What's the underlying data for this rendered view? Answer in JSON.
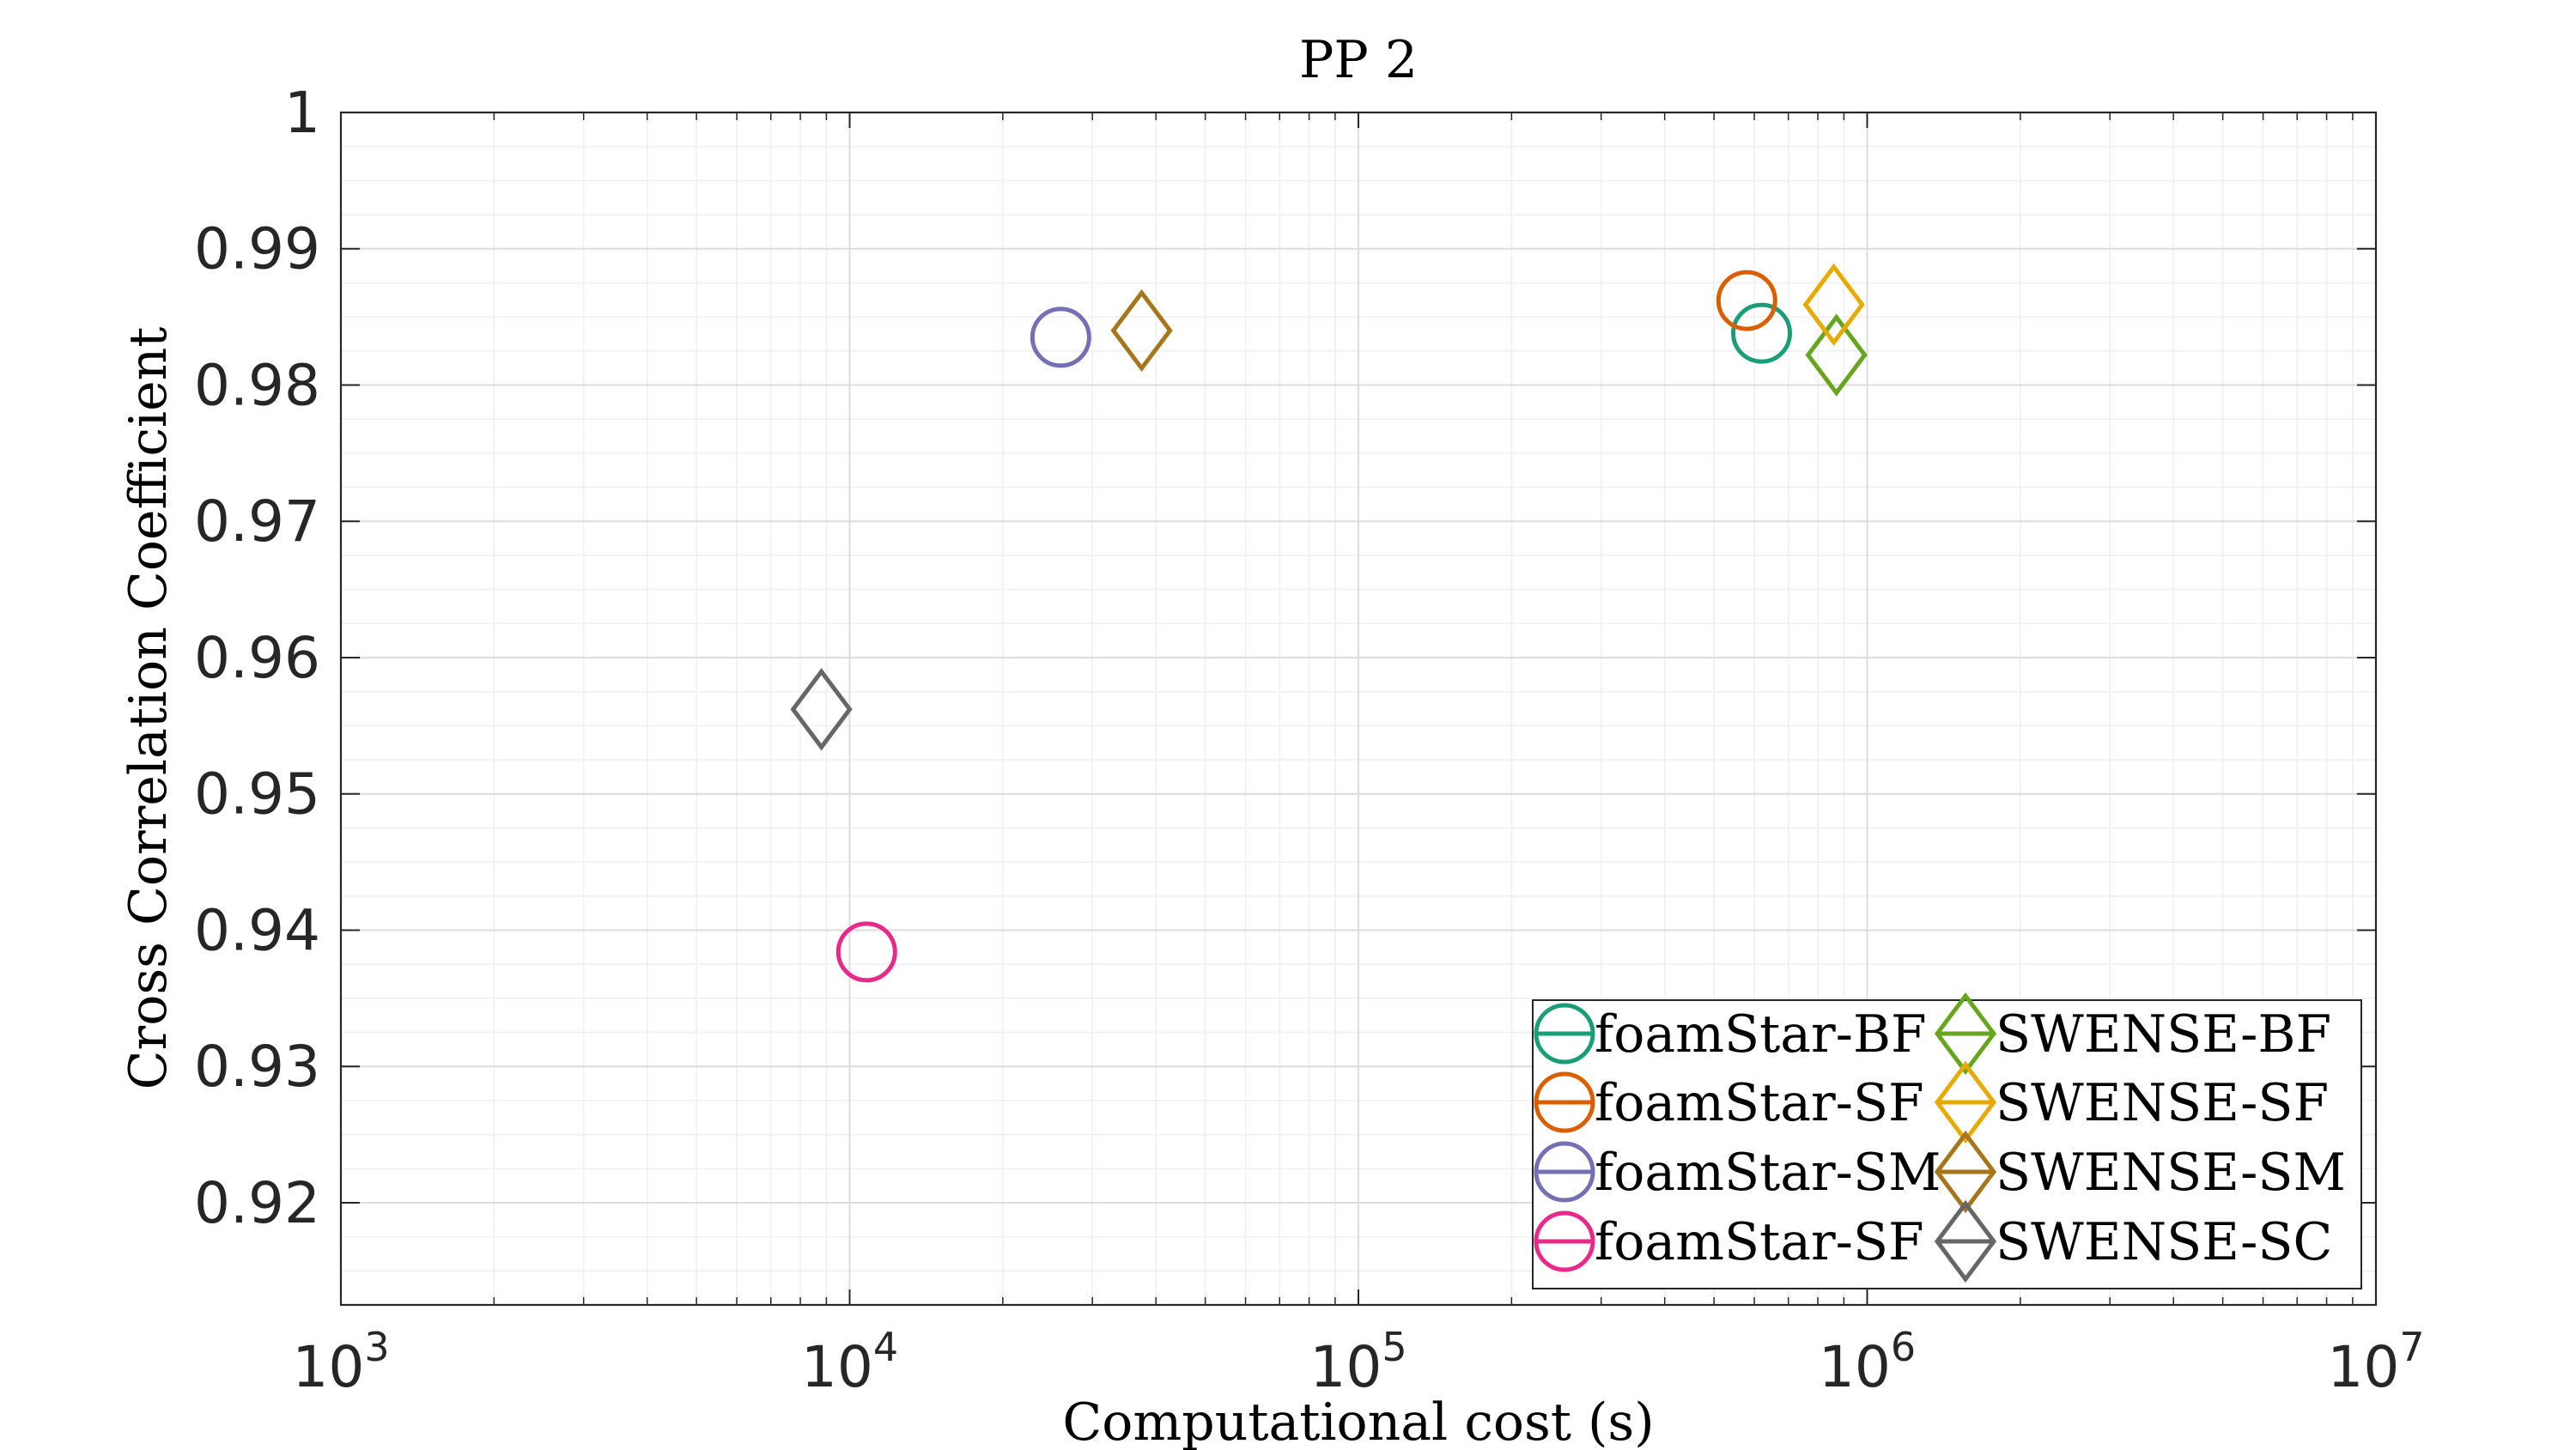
{
  "chart_data": {
    "type": "scatter",
    "title": "PP 2",
    "xlabel": "Computational cost (s)",
    "ylabel": "Cross Correlation Coefficient",
    "xscale": "log",
    "xlim": [
      1000,
      10000000
    ],
    "ylim": [
      0.9125,
      1.0
    ],
    "x_ticks": [
      {
        "value": 1000,
        "base": "10",
        "exp": "3"
      },
      {
        "value": 10000,
        "base": "10",
        "exp": "4"
      },
      {
        "value": 100000,
        "base": "10",
        "exp": "5"
      },
      {
        "value": 1000000,
        "base": "10",
        "exp": "6"
      },
      {
        "value": 10000000,
        "base": "10",
        "exp": "7"
      }
    ],
    "y_ticks": [
      {
        "value": 0.92,
        "label": "0.92"
      },
      {
        "value": 0.93,
        "label": "0.93"
      },
      {
        "value": 0.94,
        "label": "0.94"
      },
      {
        "value": 0.95,
        "label": "0.95"
      },
      {
        "value": 0.96,
        "label": "0.96"
      },
      {
        "value": 0.97,
        "label": "0.97"
      },
      {
        "value": 0.98,
        "label": "0.98"
      },
      {
        "value": 0.99,
        "label": "0.99"
      },
      {
        "value": 1.0,
        "label": "1"
      }
    ],
    "grid": true,
    "legend_position": "bottom-right",
    "series": [
      {
        "name": "foamStar-BF",
        "marker": "circle",
        "color": "#1b9e77",
        "x": 620000,
        "y": 0.9838
      },
      {
        "name": "foamStar-SF",
        "marker": "circle",
        "color": "#d95f02",
        "x": 580000,
        "y": 0.9862
      },
      {
        "name": "foamStar-SM",
        "marker": "circle",
        "color": "#7570b3",
        "x": 26000,
        "y": 0.9835
      },
      {
        "name": "foamStar-SF",
        "marker": "circle",
        "color": "#e7298a",
        "x": 10800,
        "y": 0.9384
      },
      {
        "name": "SWENSE-BF",
        "marker": "diamond",
        "color": "#66a61e",
        "x": 870000,
        "y": 0.9822
      },
      {
        "name": "SWENSE-SF",
        "marker": "diamond",
        "color": "#e6ab02",
        "x": 860000,
        "y": 0.9859
      },
      {
        "name": "SWENSE-SM",
        "marker": "diamond",
        "color": "#a6761d",
        "x": 37500,
        "y": 0.984
      },
      {
        "name": "SWENSE-SC",
        "marker": "diamond",
        "color": "#666666",
        "x": 8800,
        "y": 0.9562
      }
    ]
  }
}
